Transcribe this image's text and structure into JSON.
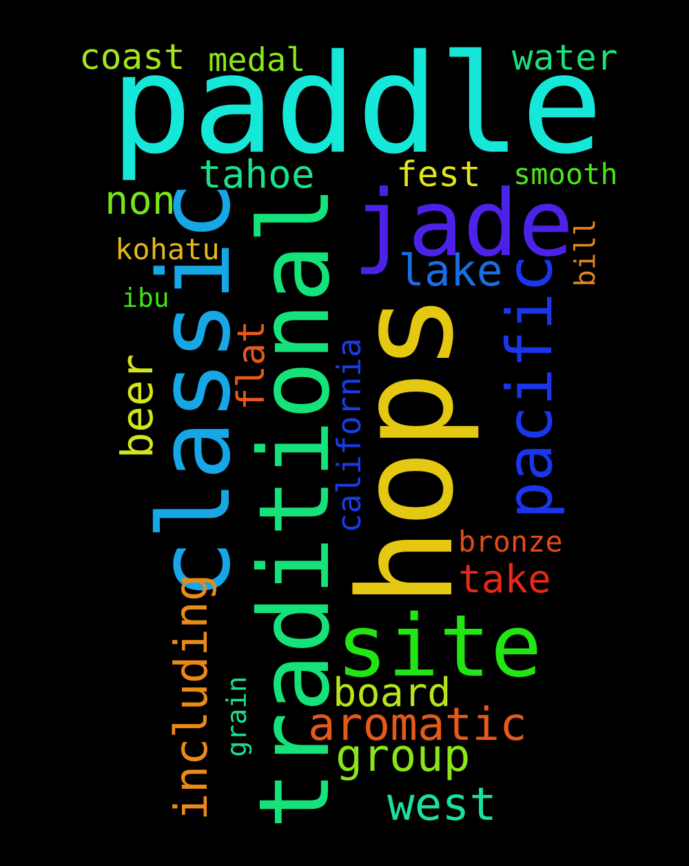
{
  "words": [
    {
      "text": "paddle",
      "color": "#15e8d8"
    },
    {
      "text": "hops",
      "color": "#e5c812"
    },
    {
      "text": "traditional",
      "color": "#16e27a"
    },
    {
      "text": "classic",
      "color": "#17a6e6"
    },
    {
      "text": "jade",
      "color": "#4c22e8"
    },
    {
      "text": "site",
      "color": "#22e514"
    },
    {
      "text": "pacific",
      "color": "#1a36ec"
    },
    {
      "text": "including",
      "color": "#ec8a16"
    },
    {
      "text": "aromatic",
      "color": "#e55a1a"
    },
    {
      "text": "group",
      "color": "#8ae51a"
    },
    {
      "text": "board",
      "color": "#b8e51a"
    },
    {
      "text": "west",
      "color": "#1ae29c"
    },
    {
      "text": "beer",
      "color": "#d2e51a"
    },
    {
      "text": "tahoe",
      "color": "#1ae28c"
    },
    {
      "text": "take",
      "color": "#e5281a"
    },
    {
      "text": "lake",
      "color": "#1a6ee5"
    },
    {
      "text": "non",
      "color": "#78e51a"
    },
    {
      "text": "fest",
      "color": "#e2e51a"
    },
    {
      "text": "coast",
      "color": "#a6e51a"
    },
    {
      "text": "water",
      "color": "#1ae27a"
    },
    {
      "text": "medal",
      "color": "#8ae51a"
    },
    {
      "text": "flat",
      "color": "#e55a1a"
    },
    {
      "text": "california",
      "color": "#1a3ce5"
    },
    {
      "text": "smooth",
      "color": "#4ae51a"
    },
    {
      "text": "bronze",
      "color": "#e54a1a"
    },
    {
      "text": "kohatu",
      "color": "#e5b81a"
    },
    {
      "text": "bill",
      "color": "#e5841a"
    },
    {
      "text": "ibu",
      "color": "#3ce51a"
    },
    {
      "text": "grain",
      "color": "#1ae28c"
    }
  ]
}
